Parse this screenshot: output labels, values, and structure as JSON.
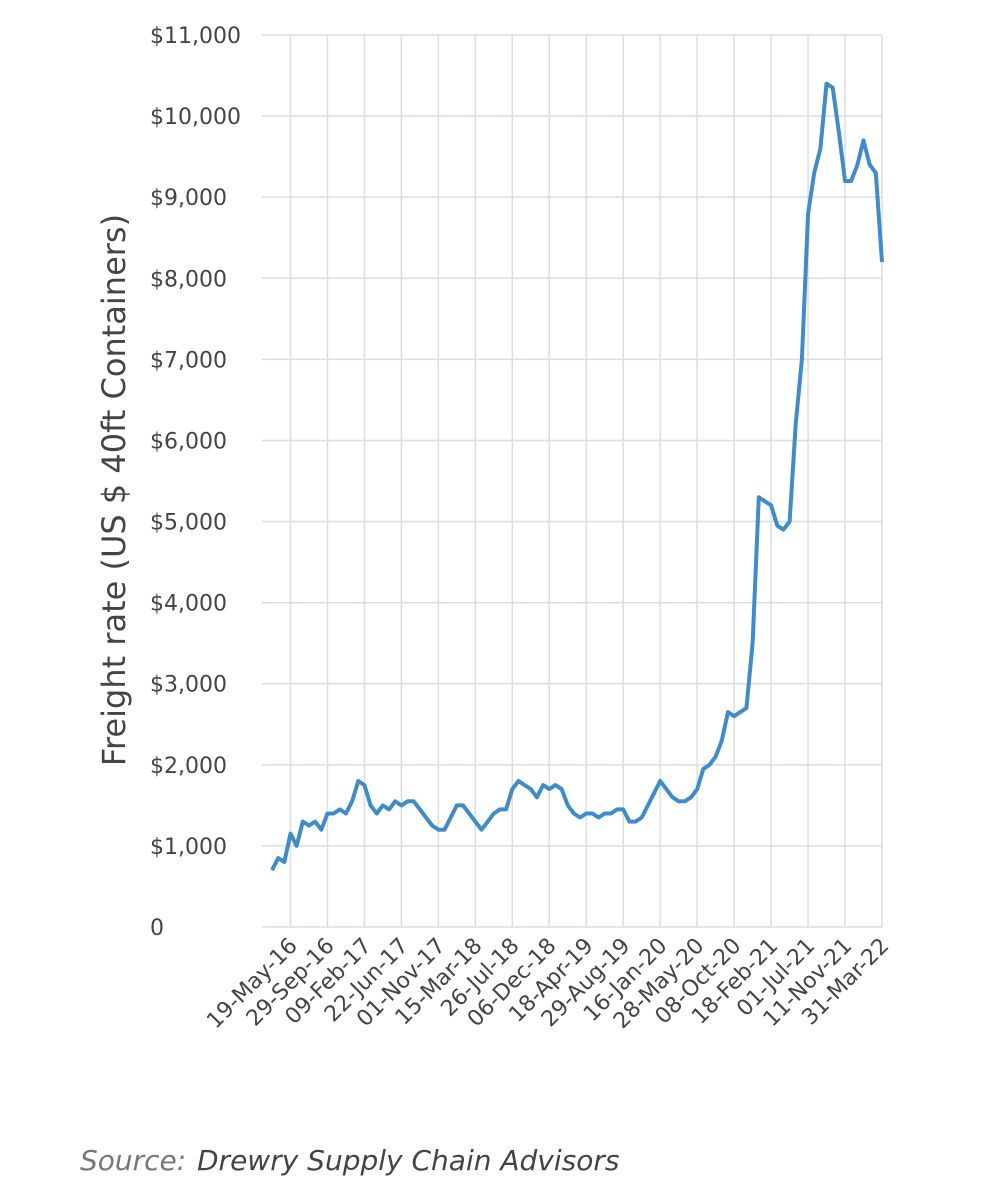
{
  "chart_data": {
    "type": "line",
    "y_label": "Freight rate (US $ 40ft Containers)",
    "source_label": "Source:",
    "source": "Drewry Supply Chain Advisors",
    "categories": [
      null,
      null,
      null,
      "19-May-16",
      null,
      null,
      null,
      null,
      null,
      "29-Sep-16",
      null,
      null,
      null,
      null,
      null,
      "09-Feb-17",
      null,
      null,
      null,
      null,
      null,
      "22-Jun-17",
      null,
      null,
      null,
      null,
      null,
      "01-Nov-17",
      null,
      null,
      null,
      null,
      null,
      "15-Mar-18",
      null,
      null,
      null,
      null,
      null,
      "26-Jul-18",
      null,
      null,
      null,
      null,
      null,
      "06-Dec-18",
      null,
      null,
      null,
      null,
      null,
      "18-Apr-19",
      null,
      null,
      null,
      null,
      null,
      "29-Aug-19",
      null,
      null,
      null,
      null,
      null,
      "16-Jan-20",
      null,
      null,
      null,
      null,
      null,
      "28-May-20",
      null,
      null,
      null,
      null,
      null,
      "08-Oct-20",
      null,
      null,
      null,
      null,
      null,
      "18-Feb-21",
      null,
      null,
      null,
      null,
      null,
      "01-Jul-21",
      null,
      null,
      null,
      null,
      null,
      "11-Nov-21",
      null,
      null,
      null,
      null,
      null,
      "31-Mar-22"
    ],
    "values": [
      700,
      850,
      800,
      1150,
      1000,
      1300,
      1250,
      1300,
      1200,
      1400,
      1400,
      1450,
      1400,
      1550,
      1800,
      1750,
      1500,
      1400,
      1500,
      1450,
      1550,
      1500,
      1550,
      1550,
      1450,
      1350,
      1250,
      1200,
      1200,
      1350,
      1500,
      1500,
      1400,
      1300,
      1200,
      1300,
      1400,
      1450,
      1450,
      1700,
      1800,
      1750,
      1700,
      1600,
      1750,
      1700,
      1750,
      1700,
      1500,
      1400,
      1350,
      1400,
      1400,
      1350,
      1400,
      1400,
      1450,
      1450,
      1300,
      1300,
      1350,
      1500,
      1650,
      1800,
      1700,
      1600,
      1550,
      1550,
      1600,
      1700,
      1950,
      2000,
      2100,
      2300,
      2650,
      2600,
      2650,
      2700,
      3500,
      5300,
      5250,
      5200,
      4950,
      4900,
      5000,
      6200,
      7000,
      8800,
      9300,
      9600,
      10400,
      10350,
      9800,
      9200,
      9200,
      9400,
      9700,
      9400,
      9300,
      8200
    ],
    "color": "#3f8cc8",
    "ylim": [
      0,
      11000
    ],
    "yticks": [
      0,
      {
        "value": 1000,
        "label": "$1,000"
      },
      {
        "value": 2000,
        "label": "$2,000"
      },
      {
        "value": 3000,
        "label": "$3,000"
      },
      {
        "value": 4000,
        "label": "$4,000"
      },
      {
        "value": 5000,
        "label": "$5,000"
      },
      {
        "value": 6000,
        "label": "$6,000"
      },
      {
        "value": 7000,
        "label": "$7,000"
      },
      {
        "value": 8000,
        "label": "$8,000"
      },
      {
        "value": 9000,
        "label": "$9,000"
      },
      {
        "value": 10000,
        "label": "$10,000"
      },
      {
        "value": 11000,
        "label": "$11,000"
      }
    ],
    "grid": true
  }
}
